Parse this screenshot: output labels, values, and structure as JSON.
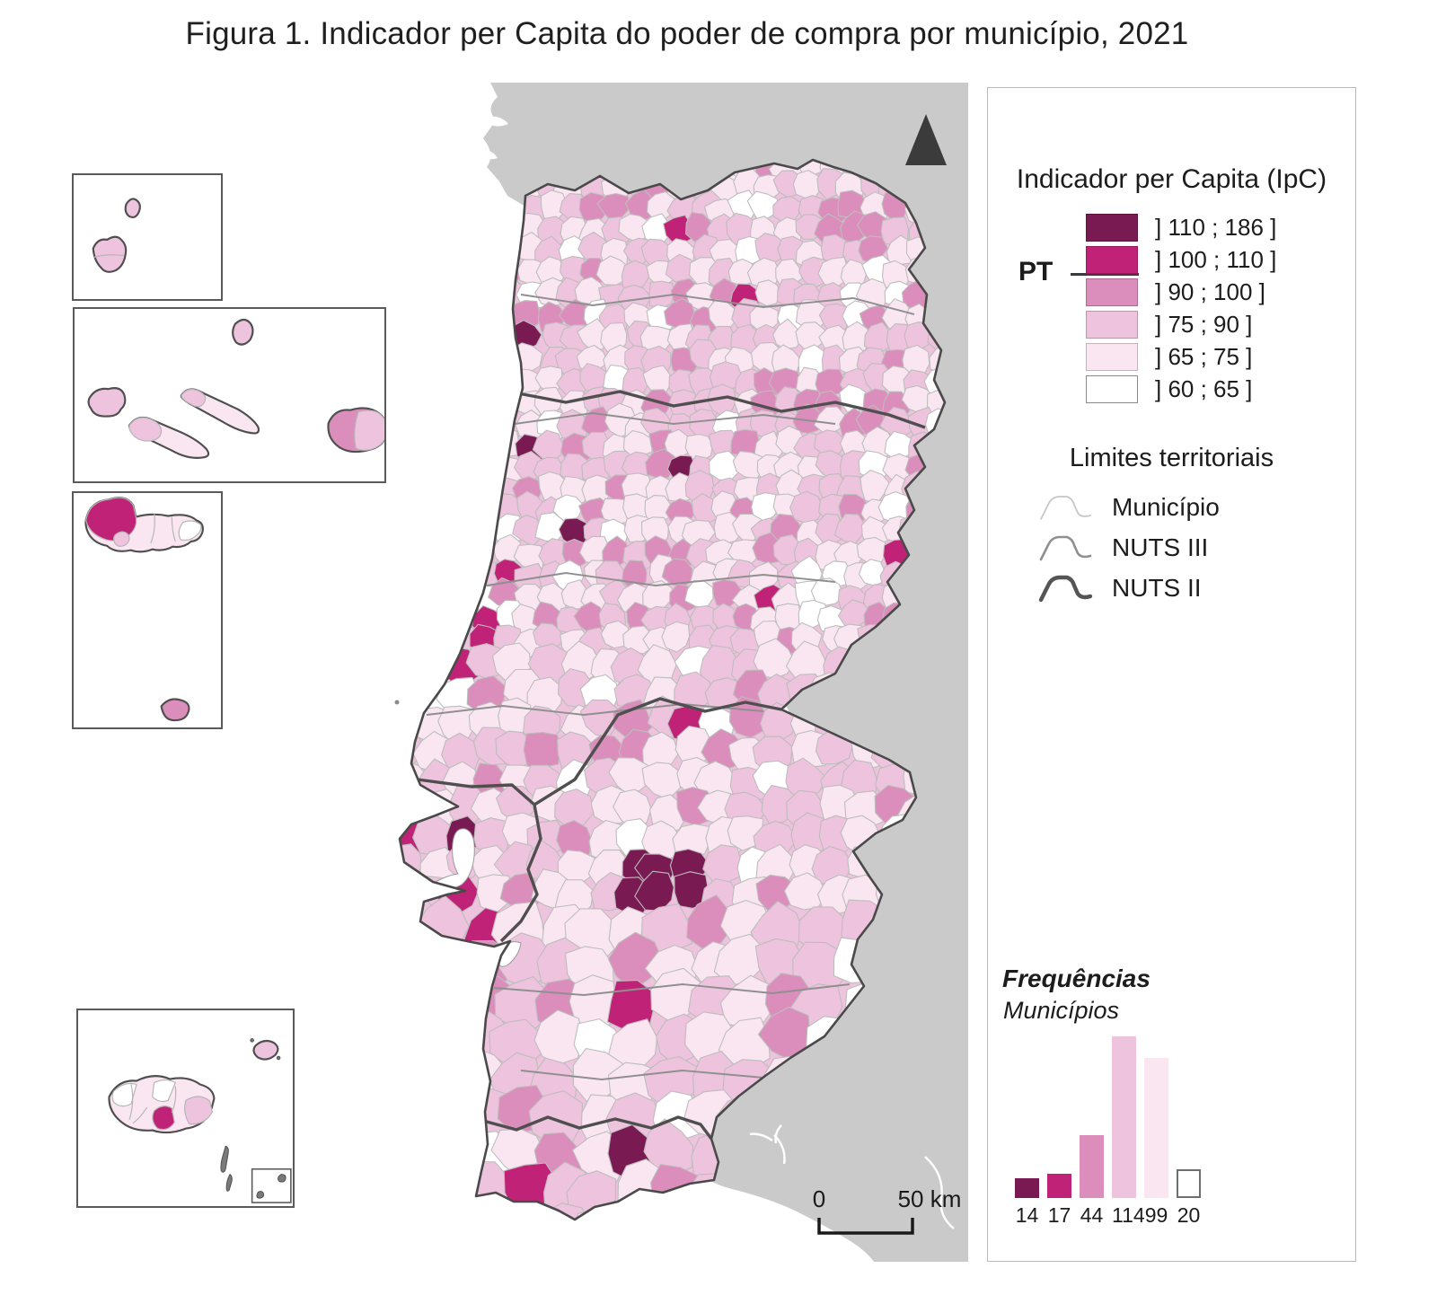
{
  "title": "Figura 1. Indicador per Capita do poder de compra por município, 2021",
  "legend": {
    "title": "Indicador per Capita (IpC)",
    "pt_label": "PT",
    "classes": [
      {
        "label": "] 110 ; 186 ]",
        "color": "#7a1a52"
      },
      {
        "label": "] 100 ; 110 ]",
        "color": "#c02277"
      },
      {
        "label": "] 90 ; 100 ]",
        "color": "#db8ebb"
      },
      {
        "label": "] 75 ; 90 ]",
        "color": "#eec3dd"
      },
      {
        "label": "] 65 ; 75 ]",
        "color": "#f9e6f1"
      },
      {
        "label": "] 60 ; 65 ]",
        "color": "#ffffff"
      }
    ],
    "territorial": {
      "title": "Limites territoriais",
      "items": [
        {
          "label": "Município",
          "color": "#c6c6c6",
          "width": 1.8
        },
        {
          "label": "NUTS III",
          "color": "#8f8f8f",
          "width": 2.6
        },
        {
          "label": "NUTS II",
          "color": "#555555",
          "width": 4.4
        }
      ]
    }
  },
  "frequencies": {
    "title": "Frequências",
    "subtitle": "Municípios",
    "values": [
      14,
      17,
      44,
      114,
      99,
      20
    ]
  },
  "scalebar": {
    "start": "0",
    "end": "50 km"
  },
  "map": {
    "sea": "#ffffff",
    "neighbor_land": "#cacaca",
    "coast_stroke": "#4a4a4a",
    "municipal_stroke": "#bdbdbd",
    "nuts3_stroke": "#8f8f8f",
    "nuts2_stroke": "#4f4f4f",
    "north_arrow": "#3b3b3b"
  }
}
